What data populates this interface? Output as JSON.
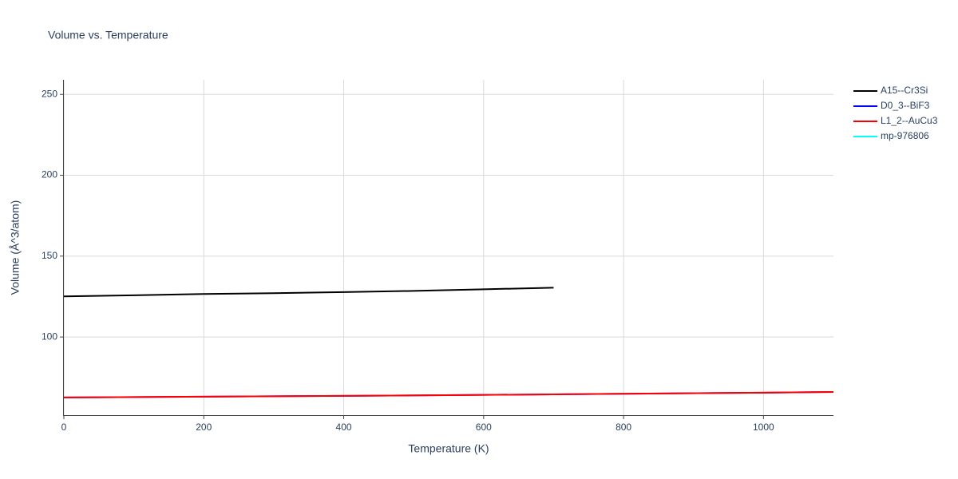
{
  "chart_data": {
    "type": "line",
    "title": "Volume vs. Temperature",
    "x_label": "Temperature (K)",
    "y_label": "Volume (Å^3/atom)",
    "xlim": [
      0,
      1100
    ],
    "xticks": [
      0,
      200,
      400,
      600,
      800,
      1000
    ],
    "ylim": [
      51.7,
      259
    ],
    "yticks": [
      100,
      150,
      200,
      250
    ],
    "grid": true,
    "legend": "right",
    "series": [
      {
        "name": "A15--Cr3Si",
        "color": "#000000",
        "x": [
          0,
          100,
          200,
          300,
          400,
          500,
          600,
          700
        ],
        "values": [
          125.1,
          125.8,
          126.6,
          127.1,
          127.8,
          128.5,
          129.5,
          130.5
        ]
      },
      {
        "name": "D0_3--BiF3",
        "color": "#0000ff",
        "x": [
          0,
          200,
          400,
          600,
          800,
          1000,
          1100
        ],
        "values": [
          62.6,
          63.1,
          63.6,
          64.2,
          64.9,
          65.6,
          66.0
        ]
      },
      {
        "name": "L1_2--AuCu3",
        "color": "#ff0000",
        "x": [
          0,
          200,
          400,
          600,
          800,
          1000,
          1100
        ],
        "values": [
          62.6,
          63.1,
          63.6,
          64.2,
          64.9,
          65.6,
          66.0
        ]
      },
      {
        "name": "mp-976806",
        "color": "#00ffff",
        "x": [],
        "values": []
      }
    ]
  }
}
